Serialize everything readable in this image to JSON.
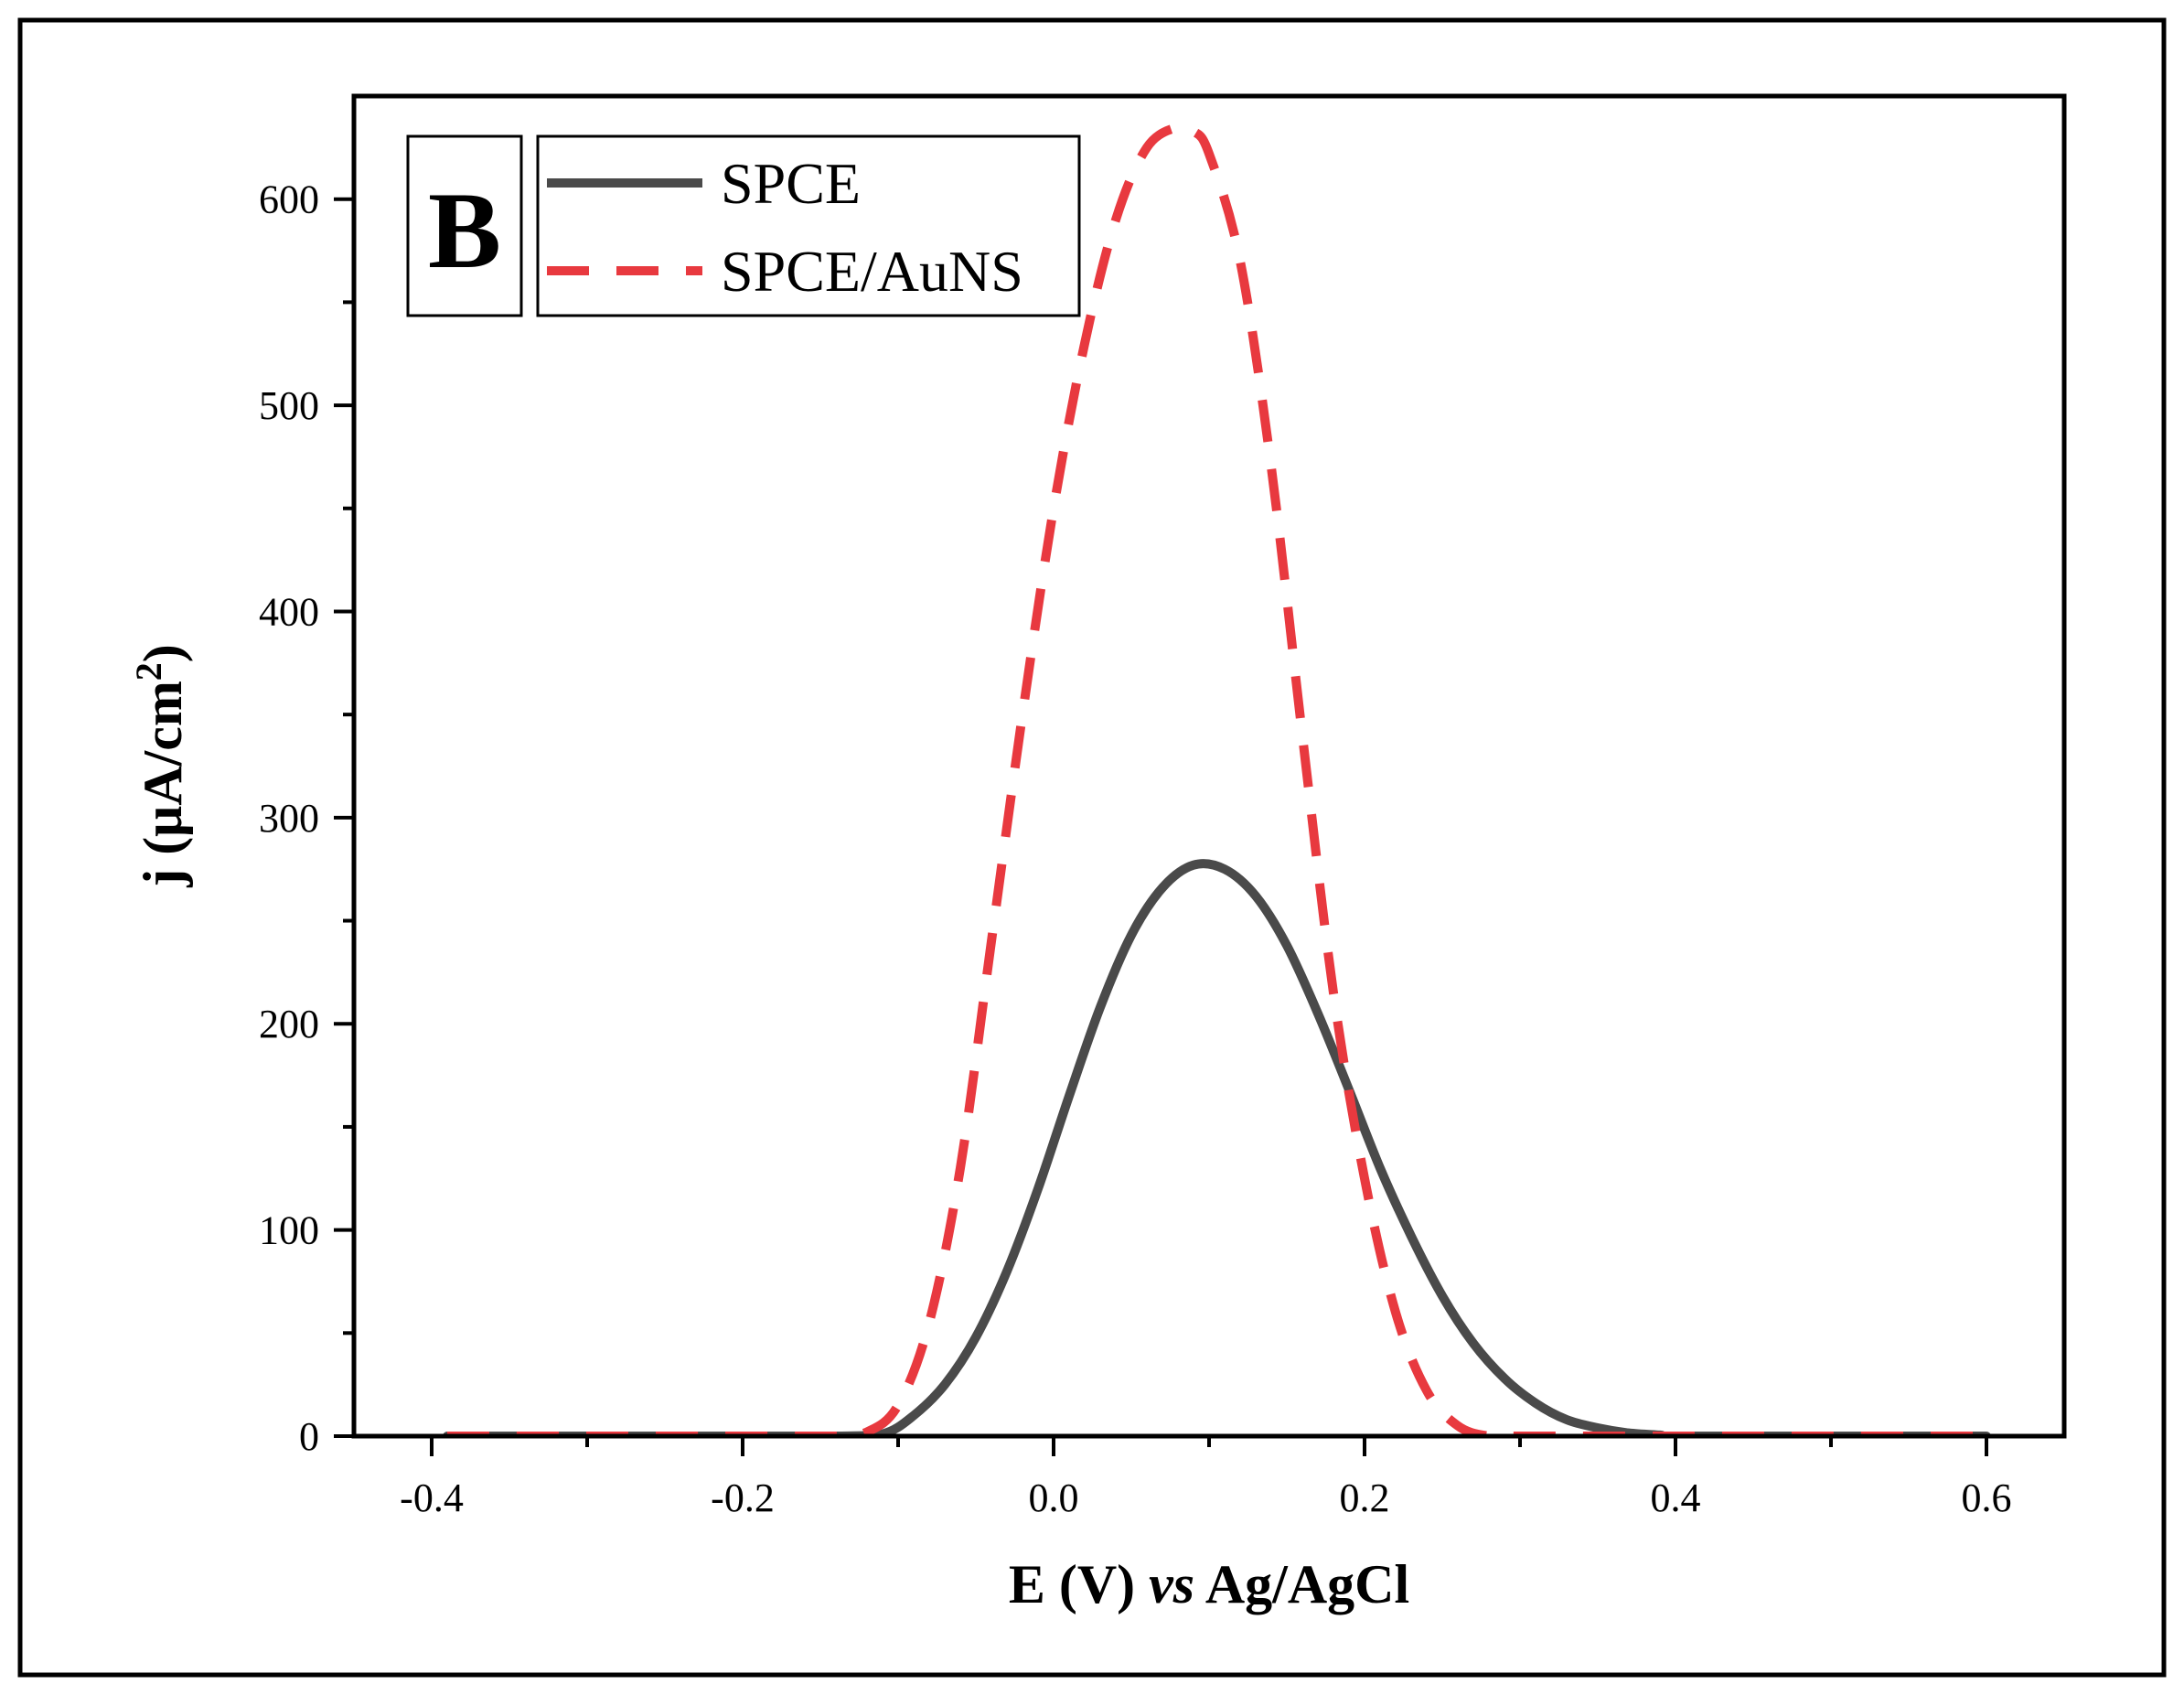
{
  "chart_data": {
    "type": "line",
    "panel_label": "B",
    "x_label": {
      "prefix": "E (V) ",
      "italic": "vs",
      "suffix": " Ag/AgCl"
    },
    "y_label": {
      "main": "j (μA/cm",
      "superscript": "2",
      "close": ")"
    },
    "xlim": [
      -0.45,
      0.65
    ],
    "ylim": [
      0,
      650
    ],
    "x_ticks": [
      -0.4,
      -0.2,
      0.0,
      0.2,
      0.4,
      0.6
    ],
    "x_tick_labels": [
      "-0.4",
      "-0.2",
      "0.0",
      "0.2",
      "0.4",
      "0.6"
    ],
    "x_minor_ticks": [
      -0.3,
      -0.1,
      0.1,
      0.3,
      0.5
    ],
    "y_ticks": [
      0,
      100,
      200,
      300,
      400,
      500,
      600
    ],
    "y_tick_labels": [
      "0",
      "100",
      "200",
      "300",
      "400",
      "500",
      "600"
    ],
    "y_minor_ticks": [
      50,
      150,
      250,
      350,
      450,
      550
    ],
    "legend_position": "top-left",
    "series": [
      {
        "name": "SPCE",
        "color": "#4a4a4a",
        "style": "solid",
        "x": [
          -0.39,
          -0.3,
          -0.2,
          -0.14,
          -0.11,
          -0.09,
          -0.07,
          -0.05,
          -0.03,
          -0.01,
          0.01,
          0.03,
          0.05,
          0.07,
          0.09,
          0.11,
          0.13,
          0.15,
          0.17,
          0.19,
          0.21,
          0.23,
          0.25,
          0.27,
          0.29,
          0.31,
          0.33,
          0.35,
          0.37,
          0.39,
          0.4,
          0.5,
          0.6
        ],
        "y": [
          0,
          0,
          0,
          0,
          1,
          10,
          25,
          48,
          80,
          120,
          165,
          208,
          243,
          266,
          277,
          275,
          262,
          238,
          205,
          168,
          130,
          97,
          68,
          45,
          28,
          16,
          8,
          4,
          1.5,
          0.5,
          0,
          0,
          0
        ]
      },
      {
        "name": "SPCE/AuNS",
        "color": "#e8393f",
        "style": "dashed",
        "x": [
          -0.39,
          -0.3,
          -0.2,
          -0.14,
          -0.12,
          -0.1,
          -0.08,
          -0.06,
          -0.04,
          -0.02,
          0.0,
          0.02,
          0.04,
          0.06,
          0.08,
          0.09,
          0.1,
          0.12,
          0.14,
          0.16,
          0.18,
          0.2,
          0.22,
          0.24,
          0.26,
          0.28,
          0.3,
          0.4,
          0.5,
          0.6
        ],
        "y": [
          0,
          0,
          0,
          0,
          2,
          15,
          55,
          130,
          240,
          350,
          450,
          530,
          590,
          625,
          635,
          633,
          622,
          570,
          470,
          340,
          215,
          125,
          60,
          22,
          5,
          0,
          0,
          0,
          0,
          0
        ]
      }
    ]
  }
}
